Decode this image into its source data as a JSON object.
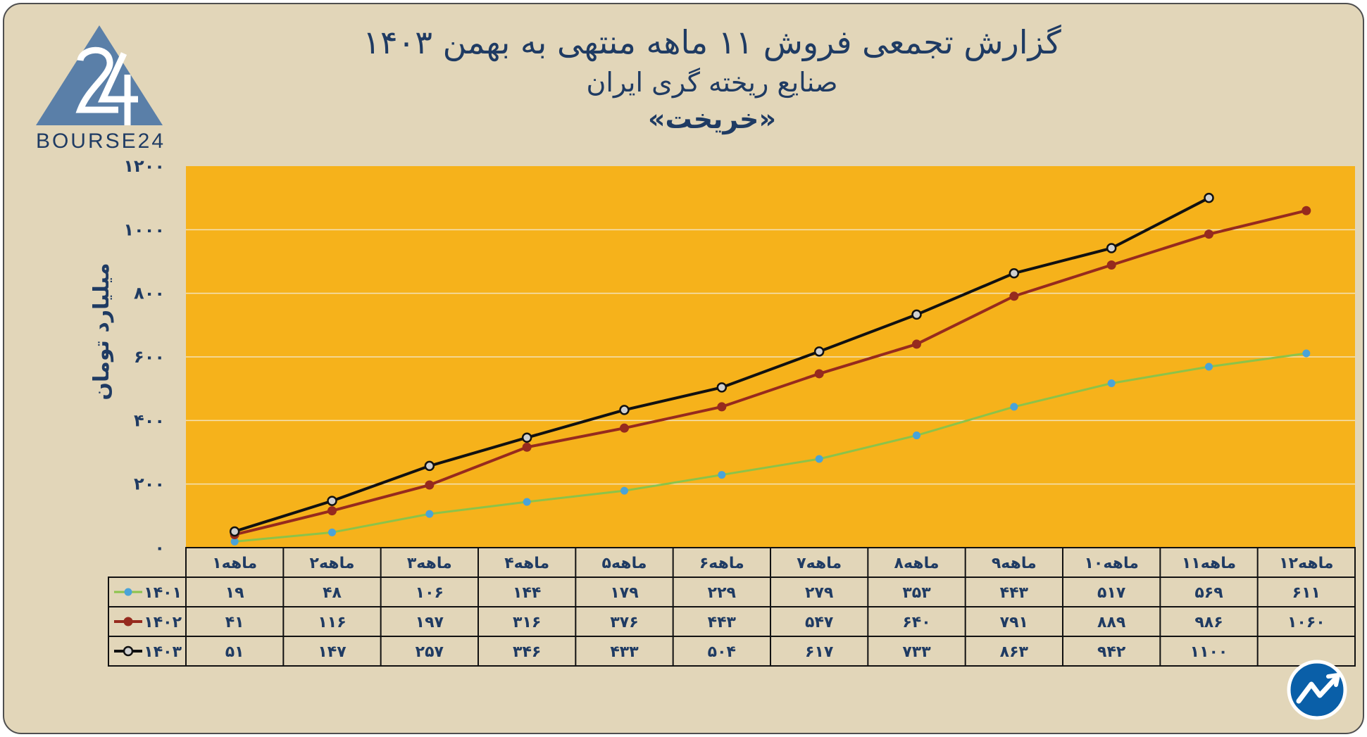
{
  "brand": {
    "logo_text": "BOURSE24"
  },
  "chart_data": {
    "type": "line",
    "title": "گزارش تجمعی فروش ۱۱ ماهه منتهی به بهمن ۱۴۰۳",
    "subtitle": "صنایع ریخته گری ایران",
    "subtitle2": "«خریخت»",
    "ylabel": "میلیارد تومان",
    "ylim": [
      0,
      1200
    ],
    "yticks": [
      0,
      200,
      400,
      600,
      800,
      1000,
      1200
    ],
    "ytick_labels": [
      "۰",
      "۲۰۰",
      "۴۰۰",
      "۶۰۰",
      "۸۰۰",
      "۱۰۰۰",
      "۱۲۰۰"
    ],
    "categories": [
      "۱ماهه",
      "۲ماهه",
      "۳ماهه",
      "۴ماهه",
      "۵ماهه",
      "۶ماهه",
      "۷ماهه",
      "۸ماهه",
      "۹ماهه",
      "۱۰ماهه",
      "۱۱ماهه",
      "۱۲ماهه"
    ],
    "grid": true,
    "legend": "table-left",
    "plot_background": "#f6b21b",
    "series": [
      {
        "name": "۱۴۰۱",
        "color": "#8bc34a",
        "marker_color": "#4aa3d8",
        "values": [
          19,
          48,
          106,
          144,
          179,
          229,
          279,
          353,
          443,
          517,
          569,
          611
        ],
        "labels": [
          "۱۹",
          "۴۸",
          "۱۰۶",
          "۱۴۴",
          "۱۷۹",
          "۲۲۹",
          "۲۷۹",
          "۳۵۳",
          "۴۴۳",
          "۵۱۷",
          "۵۶۹",
          "۶۱۱"
        ]
      },
      {
        "name": "۱۴۰۲",
        "color": "#962a1e",
        "marker_color": "#962a1e",
        "values": [
          41,
          116,
          197,
          316,
          376,
          443,
          547,
          640,
          791,
          889,
          986,
          1060
        ],
        "labels": [
          "۴۱",
          "۱۱۶",
          "۱۹۷",
          "۳۱۶",
          "۳۷۶",
          "۴۴۳",
          "۵۴۷",
          "۶۴۰",
          "۷۹۱",
          "۸۸۹",
          "۹۸۶",
          "۱۰۶۰"
        ]
      },
      {
        "name": "۱۴۰۳",
        "color": "#111111",
        "marker_color": "#cfcfcf",
        "values": [
          51,
          147,
          257,
          346,
          433,
          504,
          617,
          733,
          863,
          942,
          1100,
          null
        ],
        "labels": [
          "۵۱",
          "۱۴۷",
          "۲۵۷",
          "۳۴۶",
          "۴۳۳",
          "۵۰۴",
          "۶۱۷",
          "۷۳۳",
          "۸۶۳",
          "۹۴۲",
          "۱۱۰۰",
          ""
        ]
      }
    ]
  }
}
